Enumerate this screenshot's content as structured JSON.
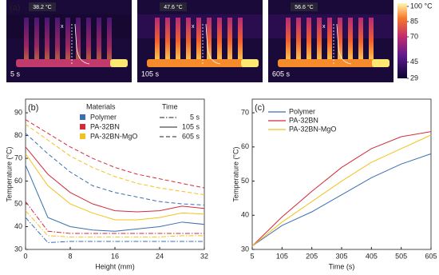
{
  "panel_a": {
    "label": "(a)",
    "marker_label": "x",
    "images": [
      {
        "temperature": "38.2 °C",
        "time": "5 s"
      },
      {
        "temperature": "47.6 °C",
        "time": "105 s"
      },
      {
        "temperature": "56.6 °C",
        "time": "605 s"
      }
    ],
    "colorbar": {
      "lim": [
        29,
        100
      ],
      "ticks": [
        {
          "value": 100,
          "label": "100 °C"
        },
        85,
        70,
        45,
        29
      ]
    }
  },
  "chart_data": [
    {
      "type": "line",
      "panel_label": "(b)",
      "x_label": "Height (mm)",
      "y_label": "Temperature (°C)",
      "x": [
        0,
        4,
        8,
        12,
        16,
        20,
        24,
        28,
        32
      ],
      "xlim": [
        0,
        32
      ],
      "xticks": [
        0,
        8,
        16,
        24,
        32
      ],
      "ylim": [
        30,
        96
      ],
      "yticks": [
        30,
        40,
        50,
        60,
        70,
        80,
        90
      ],
      "legend_title": "Materials",
      "style_title": "Time",
      "line_styles": [
        {
          "label": "5 s",
          "dash": "dashdot"
        },
        {
          "label": "105 s",
          "dash": "solid"
        },
        {
          "label": "605 s",
          "dash": "dashed"
        }
      ],
      "series": [
        {
          "name": "Polymer",
          "color": "#3a6fb0",
          "values": [
            [
              44,
              33,
              33.5,
              33.5,
              33.5,
              33.5,
              33.5,
              33.5,
              33.5
            ],
            [
              67,
              44,
              40,
              38.5,
              38,
              39,
              40,
              42,
              41
            ],
            [
              81,
              72,
              64,
              58,
              55,
              53,
              51,
              50,
              49.5
            ]
          ]
        },
        {
          "name": "PA-32BN",
          "color": "#d42a3c",
          "values": [
            [
              51,
              38,
              37,
              37,
              37,
              37,
              37,
              37,
              37
            ],
            [
              75,
              63,
              55,
              50,
              47,
              46.5,
              47,
              49,
              48
            ],
            [
              87,
              81,
              75,
              70,
              66,
              63,
              61,
              59,
              57
            ]
          ]
        },
        {
          "name": "PA-32BN-MgO",
          "color": "#f2c21b",
          "values": [
            [
              47,
              36,
              35.5,
              35.5,
              35.5,
              35.5,
              35.5,
              36,
              36
            ],
            [
              72,
              58,
              50,
              46,
              43,
              43,
              44,
              46,
              45.5
            ],
            [
              85,
              78,
              71,
              66,
              62,
              59,
              57,
              55.5,
              54
            ]
          ]
        }
      ]
    },
    {
      "type": "line",
      "panel_label": "(c)",
      "x_label": "Time (s)",
      "y_label": "Temperature (°C)",
      "x": [
        5,
        105,
        205,
        305,
        405,
        505,
        605
      ],
      "xlim": [
        5,
        605
      ],
      "xticks": [
        5,
        105,
        205,
        305,
        405,
        505,
        605
      ],
      "ylim": [
        30,
        74
      ],
      "yticks": [
        30,
        40,
        50,
        60,
        70
      ],
      "series": [
        {
          "name": "Polymer",
          "color": "#3a6fb0",
          "values": [
            31,
            37,
            41,
            46,
            51,
            55,
            58
          ]
        },
        {
          "name": "PA-32BN",
          "color": "#d42a3c",
          "values": [
            31,
            39.5,
            47,
            54,
            59.5,
            63,
            64.5
          ]
        },
        {
          "name": "PA-32BN-MgO",
          "color": "#f2c21b",
          "values": [
            31,
            38,
            44,
            50,
            55.5,
            59.5,
            63.5
          ]
        }
      ]
    }
  ]
}
